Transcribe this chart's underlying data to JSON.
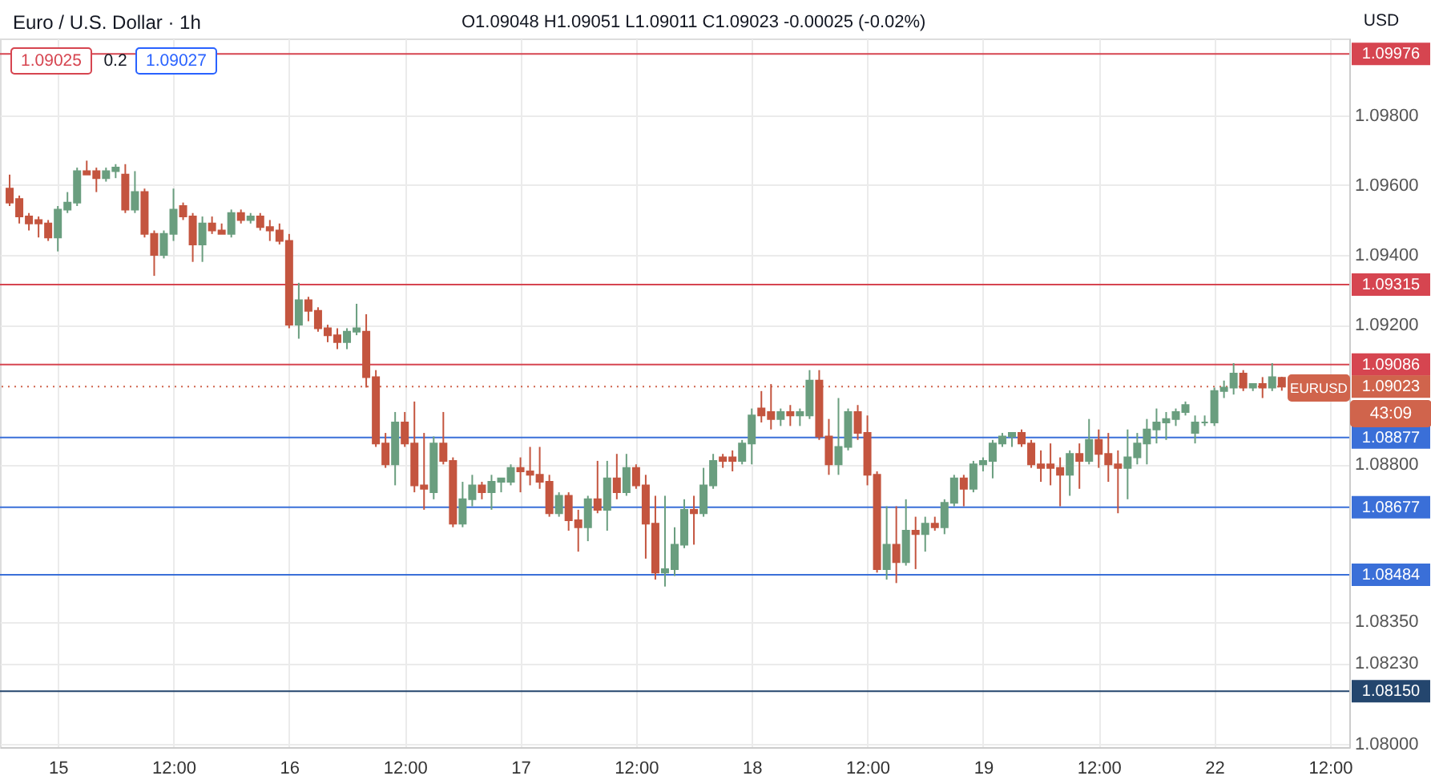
{
  "chart_data": {
    "type": "candlestick",
    "title": "Euro / U.S. Dollar · 1h",
    "subtitle": "O1.09048 H1.09051 L1.09011 C1.09023 -0.00025 (-0.02%)",
    "categories": [
      null,
      null,
      null,
      null,
      null,
      "15",
      null,
      null,
      null,
      null,
      null,
      null,
      null,
      null,
      null,
      null,
      null,
      "12:00",
      null,
      null,
      null,
      null,
      null,
      null,
      null,
      null,
      null,
      null,
      null,
      "16",
      null,
      null,
      null,
      null,
      null,
      null,
      null,
      null,
      null,
      null,
      null,
      "12:00",
      null,
      null,
      null,
      null,
      null,
      null,
      null,
      null,
      null,
      null,
      null,
      "17",
      null,
      null,
      null,
      null,
      null,
      null,
      null,
      null,
      null,
      null,
      null,
      "12:00",
      null,
      null,
      null,
      null,
      null,
      null,
      null,
      null,
      null,
      null,
      null,
      "18",
      null,
      null,
      null,
      null,
      null,
      null,
      null,
      null,
      null,
      null,
      null,
      "12:00",
      null,
      null,
      null,
      null,
      null,
      null,
      null,
      null,
      null,
      null,
      null,
      "19",
      null,
      null,
      null,
      null,
      null,
      null,
      null,
      null,
      null,
      null,
      null,
      "12:00",
      null,
      null,
      null,
      null,
      null,
      null,
      null,
      null,
      null,
      null,
      null,
      "22",
      null,
      null,
      null,
      null,
      null,
      null,
      null,
      null,
      null,
      null,
      null,
      "12:00",
      null
    ],
    "ohlc": [
      [
        1.0959,
        1.0963,
        1.0954,
        1.0955
      ],
      [
        1.0956,
        1.0957,
        1.0949,
        1.0951
      ],
      [
        1.0951,
        1.0952,
        1.0947,
        1.0949
      ],
      [
        1.095,
        1.0951,
        1.0945,
        1.0949
      ],
      [
        1.0949,
        1.095,
        1.0944,
        1.0945
      ],
      [
        1.0945,
        1.0954,
        1.0941,
        1.0953
      ],
      [
        1.0953,
        1.0958,
        1.0952,
        1.0955
      ],
      [
        1.0955,
        1.0965,
        1.0954,
        1.0964
      ],
      [
        1.0964,
        1.0967,
        1.0963,
        1.0963
      ],
      [
        1.0964,
        1.0965,
        1.0958,
        1.0962
      ],
      [
        1.0962,
        1.0965,
        1.0961,
        1.0964
      ],
      [
        1.0964,
        1.0966,
        1.0962,
        1.0965
      ],
      [
        1.0963,
        1.0966,
        1.0952,
        1.0953
      ],
      [
        1.0953,
        1.0964,
        1.0952,
        1.0958
      ],
      [
        1.0958,
        1.0959,
        1.0945,
        1.0946
      ],
      [
        1.0946,
        1.0947,
        1.0934,
        1.094
      ],
      [
        1.094,
        1.0947,
        1.0939,
        1.0946
      ],
      [
        1.0946,
        1.0959,
        1.0944,
        1.0953
      ],
      [
        1.0954,
        1.0955,
        1.095,
        1.0951
      ],
      [
        1.0951,
        1.0952,
        1.0938,
        1.0943
      ],
      [
        1.0943,
        1.0951,
        1.0938,
        1.0949
      ],
      [
        1.0949,
        1.0951,
        1.0946,
        1.0947
      ],
      [
        1.0947,
        1.0949,
        1.0946,
        1.0946
      ],
      [
        1.0946,
        1.0953,
        1.0945,
        1.0952
      ],
      [
        1.0952,
        1.0953,
        1.0949,
        1.095
      ],
      [
        1.095,
        1.0952,
        1.0949,
        1.0951
      ],
      [
        1.0951,
        1.0952,
        1.0947,
        1.0948
      ],
      [
        1.0948,
        1.095,
        1.0944,
        1.0947
      ],
      [
        1.0947,
        1.0949,
        1.0943,
        1.0944
      ],
      [
        1.0944,
        1.0946,
        1.0919,
        1.092
      ],
      [
        1.092,
        1.0932,
        1.0916,
        1.0927
      ],
      [
        1.0927,
        1.0928,
        1.0921,
        1.0924
      ],
      [
        1.0924,
        1.0925,
        1.0918,
        1.0919
      ],
      [
        1.0919,
        1.092,
        1.0915,
        1.0917
      ],
      [
        1.0917,
        1.0919,
        1.0913,
        1.0915
      ],
      [
        1.0915,
        1.0919,
        1.0913,
        1.0918
      ],
      [
        1.0918,
        1.0926,
        1.0917,
        1.0919
      ],
      [
        1.0918,
        1.0923,
        1.0902,
        1.0905
      ],
      [
        1.0905,
        1.0907,
        1.0885,
        1.0886
      ],
      [
        1.0886,
        1.0889,
        1.0879,
        1.088
      ],
      [
        1.088,
        1.0895,
        1.0874,
        1.0892
      ],
      [
        1.0892,
        1.0895,
        1.0885,
        1.0886
      ],
      [
        1.0886,
        1.0898,
        1.0872,
        1.0874
      ],
      [
        1.0874,
        1.0889,
        1.0867,
        1.0873
      ],
      [
        1.0872,
        1.0888,
        1.087,
        1.0886
      ],
      [
        1.0886,
        1.0895,
        1.088,
        1.0881
      ],
      [
        1.0881,
        1.0882,
        1.0862,
        1.0863
      ],
      [
        1.0863,
        1.0875,
        1.0862,
        1.087
      ],
      [
        1.087,
        1.0877,
        1.0868,
        1.0874
      ],
      [
        1.0874,
        1.0875,
        1.087,
        1.0872
      ],
      [
        1.0872,
        1.0877,
        1.0867,
        1.0875
      ],
      [
        1.0875,
        1.0876,
        1.0872,
        1.0876
      ],
      [
        1.0875,
        1.088,
        1.0874,
        1.0879
      ],
      [
        1.0879,
        1.0882,
        1.0872,
        1.0878
      ],
      [
        1.0878,
        1.0885,
        1.0874,
        1.0877
      ],
      [
        1.0877,
        1.0885,
        1.0873,
        1.0875
      ],
      [
        1.0875,
        1.0877,
        1.0865,
        1.0866
      ],
      [
        1.0866,
        1.0872,
        1.0865,
        1.0871
      ],
      [
        1.0871,
        1.0872,
        1.0861,
        1.0864
      ],
      [
        1.0864,
        1.0867,
        1.0855,
        1.0862
      ],
      [
        1.0862,
        1.0871,
        1.0858,
        1.087
      ],
      [
        1.087,
        1.0881,
        1.0866,
        1.0867
      ],
      [
        1.0867,
        1.0881,
        1.0861,
        1.0876
      ],
      [
        1.0876,
        1.0883,
        1.087,
        1.0872
      ],
      [
        1.0872,
        1.0883,
        1.0871,
        1.0879
      ],
      [
        1.0879,
        1.088,
        1.0873,
        1.0874
      ],
      [
        1.0874,
        1.0877,
        1.0853,
        1.0863
      ],
      [
        1.0863,
        1.0871,
        1.0847,
        1.0849
      ],
      [
        1.0849,
        1.0871,
        1.0845,
        1.085
      ],
      [
        1.085,
        1.0862,
        1.0848,
        1.0857
      ],
      [
        1.0857,
        1.087,
        1.0856,
        1.0867
      ],
      [
        1.0867,
        1.0871,
        1.0857,
        1.0866
      ],
      [
        1.0866,
        1.0879,
        1.0865,
        1.0874
      ],
      [
        1.0874,
        1.0883,
        1.0873,
        1.0881
      ],
      [
        1.0882,
        1.0883,
        1.0879,
        1.0881
      ],
      [
        1.0882,
        1.0884,
        1.0878,
        1.0881
      ],
      [
        1.0881,
        1.0887,
        1.088,
        1.0886
      ],
      [
        1.0886,
        1.0896,
        1.088,
        1.0894
      ],
      [
        1.0896,
        1.0901,
        1.0892,
        1.0894
      ],
      [
        1.0895,
        1.0903,
        1.089,
        1.0893
      ],
      [
        1.0893,
        1.0896,
        1.0891,
        1.0895
      ],
      [
        1.0895,
        1.0897,
        1.0891,
        1.0894
      ],
      [
        1.0894,
        1.0896,
        1.0891,
        1.0895
      ],
      [
        1.0894,
        1.0907,
        1.0893,
        1.0904
      ],
      [
        1.0904,
        1.0907,
        1.0887,
        1.0888
      ],
      [
        1.0888,
        1.0893,
        1.0877,
        1.088
      ],
      [
        1.088,
        1.0899,
        1.0877,
        1.0885
      ],
      [
        1.0885,
        1.0896,
        1.0884,
        1.0895
      ],
      [
        1.0895,
        1.0897,
        1.0887,
        1.0889
      ],
      [
        1.0889,
        1.0894,
        1.0874,
        1.0877
      ],
      [
        1.0877,
        1.0878,
        1.0849,
        1.085
      ],
      [
        1.085,
        1.0868,
        1.0847,
        1.0857
      ],
      [
        1.0857,
        1.0868,
        1.0846,
        1.0852
      ],
      [
        1.0852,
        1.087,
        1.0851,
        1.0861
      ],
      [
        1.0861,
        1.0865,
        1.085,
        1.086
      ],
      [
        1.086,
        1.0865,
        1.0855,
        1.0863
      ],
      [
        1.0863,
        1.0865,
        1.0861,
        1.0862
      ],
      [
        1.0862,
        1.087,
        1.086,
        1.0869
      ],
      [
        1.0869,
        1.0877,
        1.0868,
        1.0876
      ],
      [
        1.0876,
        1.0877,
        1.0868,
        1.0873
      ],
      [
        1.0873,
        1.0881,
        1.0872,
        1.088
      ],
      [
        1.088,
        1.0882,
        1.0878,
        1.0881
      ],
      [
        1.0881,
        1.0887,
        1.0876,
        1.0886
      ],
      [
        1.0886,
        1.0889,
        1.0885,
        1.0888
      ],
      [
        1.0888,
        1.0889,
        1.0885,
        1.0889
      ],
      [
        1.0889,
        1.089,
        1.0885,
        1.0886
      ],
      [
        1.0886,
        1.0887,
        1.0879,
        1.088
      ],
      [
        1.088,
        1.0884,
        1.0875,
        1.0879
      ],
      [
        1.088,
        1.0886,
        1.0874,
        1.0879
      ],
      [
        1.0879,
        1.0882,
        1.0868,
        1.0877
      ],
      [
        1.0877,
        1.0884,
        1.0871,
        1.0883
      ],
      [
        1.0883,
        1.0886,
        1.0873,
        1.0881
      ],
      [
        1.0881,
        1.0893,
        1.088,
        1.0887
      ],
      [
        1.0887,
        1.089,
        1.0879,
        1.0883
      ],
      [
        1.0883,
        1.0889,
        1.0875,
        1.088
      ],
      [
        1.088,
        1.0884,
        1.0866,
        1.0879
      ],
      [
        1.0879,
        1.089,
        1.087,
        1.0882
      ],
      [
        1.0882,
        1.0889,
        1.088,
        1.0886
      ],
      [
        1.0886,
        1.0893,
        1.088,
        1.089
      ],
      [
        1.089,
        1.0896,
        1.0886,
        1.0892
      ],
      [
        1.0892,
        1.0895,
        1.0887,
        1.0893
      ],
      [
        1.0893,
        1.0896,
        1.0891,
        1.0895
      ],
      [
        1.0895,
        1.0898,
        1.0894,
        1.0897
      ],
      [
        1.0889,
        1.0894,
        1.0886,
        1.0892
      ],
      [
        1.0892,
        1.0894,
        1.0891,
        1.0892
      ],
      [
        1.0892,
        1.0902,
        1.0891,
        1.0901
      ],
      [
        1.0901,
        1.0904,
        1.0899,
        1.0902
      ],
      [
        1.0902,
        1.0909,
        1.09,
        1.0906
      ],
      [
        1.0906,
        1.0907,
        1.0901,
        1.0902
      ],
      [
        1.0902,
        1.0903,
        1.0901,
        1.0903
      ],
      [
        1.0903,
        1.0905,
        1.0899,
        1.0902
      ],
      [
        1.0902,
        1.0909,
        1.0901,
        1.0905
      ],
      [
        1.09048,
        1.09051,
        1.09011,
        1.09023
      ],
      null,
      null,
      null,
      null,
      null,
      null
    ],
    "colors": [
      "#c4553f",
      "#c4553f",
      "#c4553f",
      "#c4553f",
      "#c4553f",
      "#6a9e7f",
      "#6a9e7f",
      "#6a9e7f",
      "#c4553f",
      "#c4553f",
      "#6a9e7f",
      "#6a9e7f",
      "#c4553f",
      "#6a9e7f",
      "#c4553f",
      "#c4553f",
      "#6a9e7f",
      "#6a9e7f",
      "#c4553f",
      "#c4553f",
      "#6a9e7f",
      "#c4553f",
      "#c4553f",
      "#6a9e7f",
      "#c4553f",
      "#6a9e7f",
      "#c4553f",
      "#c4553f",
      "#c4553f",
      "#c4553f",
      "#6a9e7f",
      "#c4553f",
      "#c4553f",
      "#c4553f",
      "#c4553f",
      "#6a9e7f",
      "#6a9e7f",
      "#c4553f",
      "#c4553f",
      "#c4553f",
      "#6a9e7f",
      "#c4553f",
      "#c4553f",
      "#c4553f",
      "#6a9e7f",
      "#c4553f",
      "#c4553f",
      "#6a9e7f",
      "#6a9e7f",
      "#c4553f",
      "#6a9e7f",
      "#6a9e7f",
      "#6a9e7f",
      "#c4553f",
      "#c4553f",
      "#c4553f",
      "#c4553f",
      "#6a9e7f",
      "#c4553f",
      "#c4553f",
      "#6a9e7f",
      "#c4553f",
      "#6a9e7f",
      "#c4553f",
      "#6a9e7f",
      "#c4553f",
      "#c4553f",
      "#c4553f",
      "#6a9e7f",
      "#6a9e7f",
      "#6a9e7f",
      "#c4553f",
      "#6a9e7f",
      "#6a9e7f",
      "#c4553f",
      "#c4553f",
      "#6a9e7f",
      "#6a9e7f",
      "#c4553f",
      "#c4553f",
      "#6a9e7f",
      "#c4553f",
      "#6a9e7f",
      "#6a9e7f",
      "#c4553f",
      "#c4553f",
      "#6a9e7f",
      "#6a9e7f",
      "#c4553f",
      "#c4553f",
      "#c4553f",
      "#6a9e7f",
      "#c4553f",
      "#6a9e7f",
      "#c4553f",
      "#6a9e7f",
      "#c4553f",
      "#6a9e7f",
      "#6a9e7f",
      "#c4553f",
      "#6a9e7f",
      "#6a9e7f",
      "#6a9e7f",
      "#6a9e7f",
      "#6a9e7f",
      "#c4553f",
      "#c4553f",
      "#c4553f",
      "#c4553f",
      "#c4553f",
      "#6a9e7f",
      "#c4553f",
      "#6a9e7f",
      "#c4553f",
      "#c4553f",
      "#c4553f",
      "#6a9e7f",
      "#6a9e7f",
      "#6a9e7f",
      "#6a9e7f",
      "#6a9e7f",
      "#6a9e7f",
      "#6a9e7f",
      "#6a9e7f",
      "#6a9e7f",
      "#6a9e7f",
      "#6a9e7f",
      "#6a9e7f",
      "#c4553f",
      "#6a9e7f",
      "#c4553f",
      "#6a9e7f",
      "#c4553f",
      null,
      null,
      null,
      null,
      null,
      null
    ],
    "ylim": [
      1.0799,
      1.1002
    ],
    "yticks": [
      {
        "value": 1.098,
        "label": "1.09800"
      },
      {
        "value": 1.096,
        "label": "1.09600"
      },
      {
        "value": 1.094,
        "label": "1.09400"
      },
      {
        "value": 1.092,
        "label": "1.09200"
      },
      {
        "value": 1.088,
        "label": "1.08800"
      },
      {
        "value": 1.0835,
        "label": "1.08350"
      },
      {
        "value": 1.0823,
        "label": "1.08230"
      },
      {
        "value": 1.08,
        "label": "1.08000"
      }
    ],
    "grid": true,
    "ref_lines": [
      {
        "axis": "y",
        "value": 1.09976,
        "label": "1.09976",
        "color": "#d64550",
        "line_style": "solid"
      },
      {
        "axis": "y",
        "value": 1.09315,
        "label": "1.09315",
        "color": "#d64550",
        "line_style": "solid"
      },
      {
        "axis": "y",
        "value": 1.09086,
        "label": "1.09086",
        "color": "#d64550",
        "line_style": "solid"
      },
      {
        "axis": "y",
        "value": 1.09023,
        "label": "1.09023",
        "color": "#d0644c",
        "line_style": "dotted"
      },
      {
        "axis": "y",
        "value": 1.08877,
        "label": "1.08877",
        "color": "#3a6fd8",
        "line_style": "solid"
      },
      {
        "axis": "y",
        "value": 1.08677,
        "label": "1.08677",
        "color": "#3a6fd8",
        "line_style": "solid"
      },
      {
        "axis": "y",
        "value": 1.08484,
        "label": "1.08484",
        "color": "#3a6fd8",
        "line_style": "solid"
      },
      {
        "axis": "y",
        "value": 1.0815,
        "label": "1.08150",
        "color": "#24466e",
        "line_style": "solid"
      }
    ],
    "annotations": [
      "1.09025",
      "0.2",
      "1.09027",
      "EURUSD",
      "43:09",
      "USD"
    ]
  }
}
